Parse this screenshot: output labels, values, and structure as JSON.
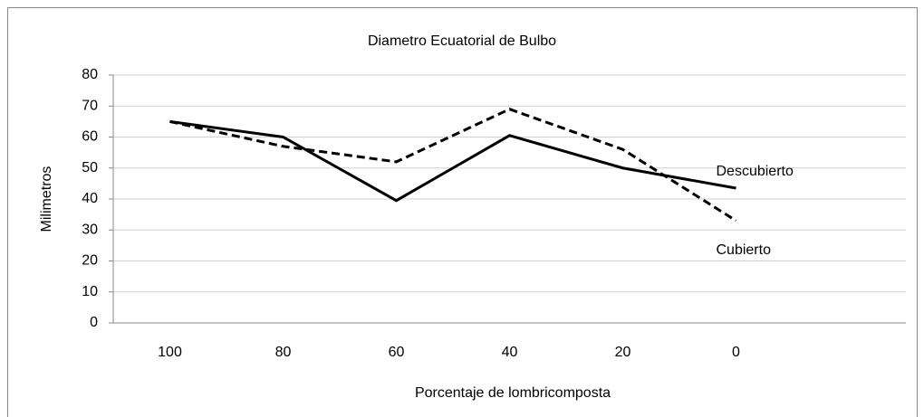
{
  "chart_data": {
    "type": "line",
    "title": "Diametro Ecuatorial de Bulbo",
    "x_label": "Porcentaje de lombricomposta",
    "y_label": "Milimetros",
    "categories": [
      "100",
      "80",
      "60",
      "40",
      "20",
      "0",
      null
    ],
    "series": [
      {
        "name": "Descubierto",
        "color": "#000000",
        "dash": false,
        "values": [
          65,
          60,
          39.5,
          60.5,
          50,
          43.5,
          null
        ]
      },
      {
        "name": "Cubierto",
        "color": "#000000",
        "dash": true,
        "values": [
          65,
          57,
          52,
          69,
          56,
          33,
          null
        ]
      }
    ],
    "ylim": [
      0,
      80
    ],
    "yticks": [
      0,
      10,
      20,
      30,
      40,
      50,
      60,
      70,
      80
    ],
    "grid": true
  }
}
